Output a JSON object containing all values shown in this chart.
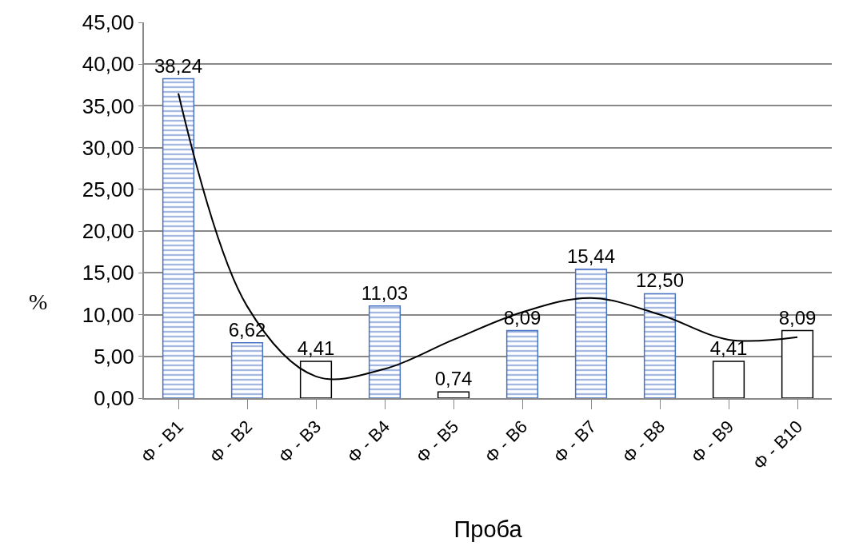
{
  "chart_data": {
    "type": "bar",
    "xlabel": "Проба",
    "ylabel": "%",
    "categories": [
      "Φ - B1",
      "Φ - B2",
      "Φ - B3",
      "Φ - B4",
      "Φ - B5",
      "Φ - B6",
      "Φ - B7",
      "Φ - B8",
      "Φ - B9",
      "Φ - B10"
    ],
    "series": [
      {
        "colors": [
          "#4a72c4",
          "#4a72c4",
          "#ffffff",
          "#4a72c4",
          "#ffffff",
          "#4a72c4",
          "#4a72c4",
          "#4a72c4",
          "#ffffff",
          "#ffffff"
        ],
        "values": [
          38.24,
          6.62,
          4.41,
          11.03,
          0.74,
          8.09,
          15.44,
          12.5,
          4.41,
          8.09
        ],
        "value_labels": [
          "38,24",
          "6,62",
          "4,41",
          "11,03",
          "0,74",
          "8,09",
          "15,44",
          "12,50",
          "4,41",
          "8,09"
        ]
      },
      {
        "type": "line",
        "color": "#000000",
        "values": [
          36.5,
          11,
          2.6,
          3.5,
          7,
          10.3,
          12,
          10,
          7,
          7.3
        ]
      }
    ],
    "ylim": [
      0,
      45
    ],
    "yticks": [
      {
        "value": 0,
        "label": "0,00"
      },
      {
        "value": 5,
        "label": "5,00"
      },
      {
        "value": 10,
        "label": "10,00"
      },
      {
        "value": 15,
        "label": "15,00"
      },
      {
        "value": 20,
        "label": "20,00"
      },
      {
        "value": 25,
        "label": "25,00"
      },
      {
        "value": 30,
        "label": "30,00"
      },
      {
        "value": 35,
        "label": "35,00"
      },
      {
        "value": 40,
        "label": "40,00"
      },
      {
        "value": 45,
        "label": "45,00"
      }
    ],
    "grid": "y"
  }
}
